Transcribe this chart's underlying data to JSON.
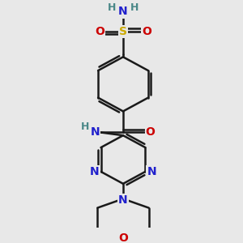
{
  "background_color": "#e8e8e8",
  "atom_colors": {
    "C": "#000000",
    "N": "#2020cc",
    "O": "#cc0000",
    "S": "#ccaa00",
    "H": "#4a8888"
  },
  "bond_color": "#1a1a1a",
  "bond_width": 1.8,
  "figsize": [
    3.0,
    3.0
  ],
  "dpi": 100
}
